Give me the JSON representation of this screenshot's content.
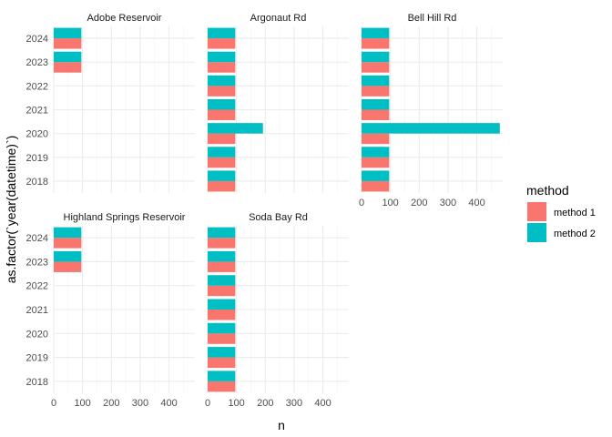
{
  "chart_data": {
    "type": "bar",
    "orientation": "horizontal",
    "position": "dodge",
    "xlabel": "n",
    "ylabel": "as.factor(`year(datetime)`)",
    "xlim": [
      0,
      490
    ],
    "x_ticks": [
      0,
      100,
      200,
      300,
      400
    ],
    "categories": [
      "2018",
      "2019",
      "2020",
      "2021",
      "2022",
      "2023",
      "2024"
    ],
    "legend": {
      "title": "method",
      "placement": "right",
      "entries": [
        {
          "name": "method 1",
          "color": "#F8766D"
        },
        {
          "name": "method 2",
          "color": "#00BFC4"
        }
      ]
    },
    "grid": true,
    "facets": [
      {
        "name": "Adobe Reservoir",
        "series": [
          {
            "name": "method 1",
            "values": [
              null,
              null,
              null,
              null,
              null,
              96,
              96
            ]
          },
          {
            "name": "method 2",
            "values": [
              null,
              null,
              null,
              null,
              null,
              96,
              96
            ]
          }
        ]
      },
      {
        "name": "Argonaut Rd",
        "series": [
          {
            "name": "method 1",
            "values": [
              96,
              96,
              96,
              96,
              96,
              96,
              96
            ]
          },
          {
            "name": "method 2",
            "values": [
              96,
              96,
              192,
              96,
              96,
              96,
              96
            ]
          }
        ]
      },
      {
        "name": "Bell Hill Rd",
        "series": [
          {
            "name": "method 1",
            "values": [
              96,
              96,
              96,
              96,
              96,
              96,
              96
            ]
          },
          {
            "name": "method 2",
            "values": [
              96,
              96,
              480,
              96,
              96,
              96,
              96
            ]
          }
        ]
      },
      {
        "name": "Highland Springs Reservoir",
        "series": [
          {
            "name": "method 1",
            "values": [
              null,
              null,
              null,
              null,
              null,
              96,
              96
            ]
          },
          {
            "name": "method 2",
            "values": [
              null,
              null,
              null,
              null,
              null,
              96,
              96
            ]
          }
        ]
      },
      {
        "name": "Soda Bay Rd",
        "series": [
          {
            "name": "method 1",
            "values": [
              96,
              96,
              96,
              96,
              96,
              96,
              96
            ]
          },
          {
            "name": "method 2",
            "values": [
              96,
              96,
              96,
              96,
              96,
              96,
              96
            ]
          }
        ]
      }
    ]
  }
}
